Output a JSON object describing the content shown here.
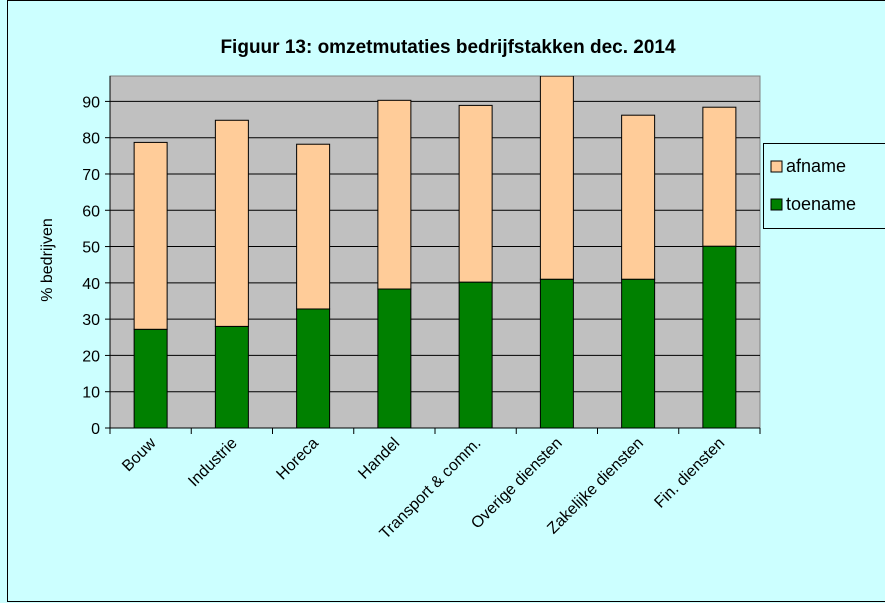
{
  "chart_data": {
    "type": "stacked_bar",
    "title": "Figuur 13: omzetmutaties bedrijfstakken dec. 2014",
    "y_label": "% bedrijven",
    "categories": [
      "Bouw",
      "Industrie",
      "Horeca",
      "Handel",
      "Transport & comm.",
      "Overige diensten",
      "Zakelijke diensten",
      "Fin. diensten"
    ],
    "series": [
      {
        "name": "toename",
        "color": "#008000",
        "values": [
          27.2,
          28,
          32.8,
          38.3,
          40.2,
          41,
          41,
          50.1
        ]
      },
      {
        "name": "afname",
        "color": "#ffcc99",
        "values": [
          51.5,
          56.8,
          45.4,
          52,
          48.7,
          56,
          45.2,
          38.3
        ]
      }
    ],
    "ylim": [
      0,
      97
    ],
    "yticks": [
      0,
      10,
      20,
      30,
      40,
      50,
      60,
      70,
      80,
      90
    ],
    "legend_position": "right"
  }
}
